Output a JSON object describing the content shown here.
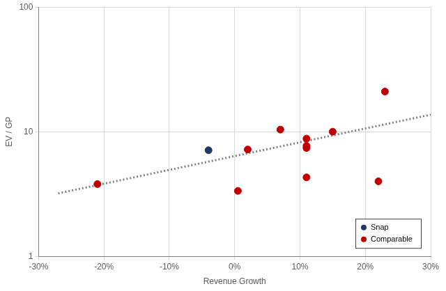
{
  "chart_data": {
    "type": "scatter",
    "x_label": "Revenue Growth",
    "y_label": "EV / GP",
    "xlim": [
      -30,
      30
    ],
    "xticks": [
      {
        "value": -30,
        "label": "-30%"
      },
      {
        "value": -20,
        "label": "-20%"
      },
      {
        "value": -10,
        "label": "-10%"
      },
      {
        "value": 0,
        "label": "0%"
      },
      {
        "value": 10,
        "label": "10%"
      },
      {
        "value": 20,
        "label": "20%"
      },
      {
        "value": 30,
        "label": "30%"
      }
    ],
    "ylim": [
      1,
      100
    ],
    "yticks": [
      1,
      10,
      100
    ],
    "log": "y",
    "grid": true,
    "legend": "lower right",
    "marker": "circle",
    "series": [
      {
        "name": "Snap",
        "color": "#1f3864",
        "x": [
          -4
        ],
        "values": [
          7.1
        ]
      },
      {
        "name": "Comparable",
        "color": "#c00000",
        "x": [
          -21,
          0.5,
          2,
          7,
          11,
          11,
          11,
          11,
          15,
          22,
          23
        ],
        "values": [
          3.8,
          3.35,
          7.2,
          10.4,
          8.8,
          7.7,
          7.4,
          4.3,
          10,
          4.0,
          21
        ]
      }
    ],
    "trend_line": {
      "x": [
        -27,
        30
      ],
      "values": [
        3.2,
        13.7
      ],
      "color": "#7f7f7f",
      "line_style": "dotted"
    }
  }
}
